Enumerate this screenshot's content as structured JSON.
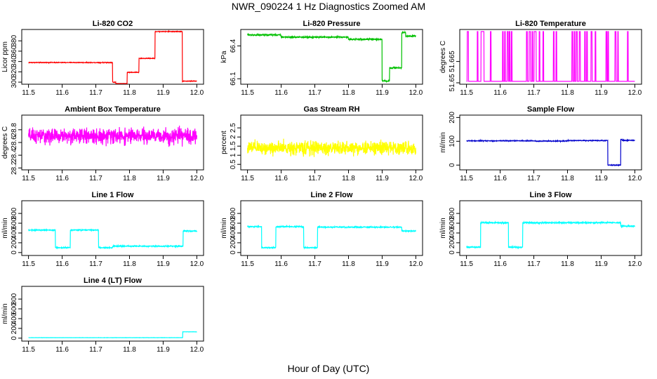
{
  "figure": {
    "title": "NWR_090224  1 Hz Diagnostics Zoomed AM",
    "xlabel": "Hour of Day (UTC)"
  },
  "chart_data": [
    {
      "type": "line",
      "title": "Li-820 CO2",
      "ylabel": "Licor ppm",
      "color": "#ff0000",
      "xlim": [
        11.48,
        12.02
      ],
      "ylim": [
        296,
        402
      ],
      "xticks": [
        11.5,
        11.6,
        11.7,
        11.8,
        11.9,
        12.0
      ],
      "yticks": [
        300,
        320,
        340,
        360,
        380
      ],
      "noise": 0.6,
      "segments": [
        [
          11.5,
          11.75,
          338
        ],
        [
          11.75,
          11.759,
          300
        ],
        [
          11.759,
          11.793,
          297
        ],
        [
          11.793,
          11.828,
          319
        ],
        [
          11.828,
          11.876,
          346
        ],
        [
          11.876,
          11.957,
          398
        ],
        [
          11.957,
          12.0,
          302
        ]
      ]
    },
    {
      "type": "line",
      "title": "Li-820 Pressure",
      "ylabel": "kPa",
      "color": "#00c000",
      "xlim": [
        11.48,
        12.02
      ],
      "ylim": [
        66.05,
        66.55
      ],
      "xticks": [
        11.5,
        11.6,
        11.7,
        11.8,
        11.9,
        12.0
      ],
      "yticks": [
        66.1,
        66.4
      ],
      "noise": 0.006,
      "segments": [
        [
          11.5,
          11.6,
          66.5
        ],
        [
          11.6,
          11.8,
          66.48
        ],
        [
          11.8,
          11.9,
          66.46
        ],
        [
          11.9,
          11.922,
          66.08
        ],
        [
          11.922,
          11.958,
          66.2
        ],
        [
          11.958,
          11.97,
          66.52
        ],
        [
          11.97,
          12.0,
          66.49
        ]
      ]
    },
    {
      "type": "line",
      "title": "Li-820 Temperature",
      "ylabel": "degrees C",
      "color": "#ff00ff",
      "xlim": [
        11.48,
        12.02
      ],
      "ylim": [
        51.649,
        51.6875
      ],
      "xticks": [
        11.5,
        11.6,
        11.7,
        11.8,
        11.9,
        12.0
      ],
      "yticks": [
        51.65,
        51.665
      ],
      "noise": 0,
      "baseline": 51.651,
      "spike_value": 51.686,
      "spikes": [
        [
          11.502,
          11.506
        ],
        [
          11.532,
          11.534
        ],
        [
          11.543,
          11.552
        ],
        [
          11.571,
          11.573
        ],
        [
          11.607,
          11.609
        ],
        [
          11.613,
          11.615
        ],
        [
          11.621,
          11.624
        ],
        [
          11.627,
          11.629
        ],
        [
          11.633,
          11.635
        ],
        [
          11.678,
          11.681
        ],
        [
          11.686,
          11.69
        ],
        [
          11.695,
          11.697
        ],
        [
          11.701,
          11.707
        ],
        [
          11.716,
          11.718
        ],
        [
          11.727,
          11.729
        ],
        [
          11.758,
          11.76
        ],
        [
          11.766,
          11.768
        ],
        [
          11.813,
          11.816
        ],
        [
          11.82,
          11.822
        ],
        [
          11.826,
          11.829
        ],
        [
          11.835,
          11.838
        ],
        [
          11.851,
          11.853
        ],
        [
          11.857,
          11.859
        ],
        [
          11.87,
          11.873
        ],
        [
          11.882,
          11.884
        ],
        [
          11.914,
          11.917
        ],
        [
          11.92,
          11.922
        ],
        [
          11.941,
          11.944
        ],
        [
          11.949,
          11.951
        ],
        [
          11.978,
          11.98
        ]
      ]
    },
    {
      "type": "line",
      "title": "Ambient Box Temperature",
      "ylabel": "degrees C",
      "color": "#ff00ff",
      "xlim": [
        11.48,
        12.02
      ],
      "ylim": [
        28.17,
        29.03
      ],
      "xticks": [
        11.5,
        11.6,
        11.7,
        11.8,
        11.9,
        12.0
      ],
      "yticks": [
        28.2,
        28.4,
        28.6,
        28.8
      ],
      "noise": 0.11,
      "segments": [
        [
          11.5,
          12.0,
          28.7
        ]
      ]
    },
    {
      "type": "line",
      "title": "Gas Stream RH",
      "ylabel": "percent",
      "color": "#ffff00",
      "xlim": [
        11.48,
        12.02
      ],
      "ylim": [
        0.2,
        3.2
      ],
      "xticks": [
        11.5,
        11.6,
        11.7,
        11.8,
        11.9,
        12.0
      ],
      "yticks": [
        0.5,
        1.0,
        1.5,
        2.0,
        2.5
      ],
      "noise": 0.35,
      "segments": [
        [
          11.5,
          12.0,
          1.4
        ]
      ]
    },
    {
      "type": "line",
      "title": "Sample Flow",
      "ylabel": "ml/min",
      "color": "#0000cc",
      "xlim": [
        11.48,
        12.02
      ],
      "ylim": [
        -20,
        210
      ],
      "xticks": [
        11.5,
        11.6,
        11.7,
        11.8,
        11.9,
        12.0
      ],
      "yticks": [
        0,
        100,
        200
      ],
      "noise": 1.5,
      "segments": [
        [
          11.5,
          11.7,
          102
        ],
        [
          11.7,
          11.8,
          101
        ],
        [
          11.8,
          11.92,
          103
        ],
        [
          11.92,
          11.958,
          0
        ],
        [
          11.958,
          11.962,
          108
        ],
        [
          11.962,
          12.0,
          104
        ]
      ]
    },
    {
      "type": "line",
      "title": "Line 1 Flow",
      "ylabel": "ml/min",
      "color": "#00ffff",
      "xlim": [
        11.48,
        12.02
      ],
      "ylim": [
        -60,
        1060
      ],
      "xticks": [
        11.5,
        11.6,
        11.7,
        11.8,
        11.9,
        12.0
      ],
      "yticks": [
        0,
        200,
        400,
        600,
        800
      ],
      "noise": 10,
      "segments": [
        [
          11.5,
          11.58,
          460
        ],
        [
          11.58,
          11.624,
          100
        ],
        [
          11.624,
          11.708,
          460
        ],
        [
          11.708,
          11.75,
          100
        ],
        [
          11.75,
          11.959,
          130
        ],
        [
          11.959,
          12.0,
          440
        ]
      ]
    },
    {
      "type": "line",
      "title": "Line 2 Flow",
      "ylabel": "ml/min",
      "color": "#00ffff",
      "xlim": [
        11.48,
        12.02
      ],
      "ylim": [
        -60,
        1060
      ],
      "xticks": [
        11.5,
        11.6,
        11.7,
        11.8,
        11.9,
        12.0
      ],
      "yticks": [
        0,
        200,
        400,
        600,
        800
      ],
      "noise": 10,
      "segments": [
        [
          11.5,
          11.542,
          530
        ],
        [
          11.542,
          11.584,
          100
        ],
        [
          11.584,
          11.667,
          530
        ],
        [
          11.667,
          11.708,
          100
        ],
        [
          11.708,
          11.958,
          520
        ],
        [
          11.958,
          12.0,
          440
        ]
      ]
    },
    {
      "type": "line",
      "title": "Line 3 Flow",
      "ylabel": "ml/min",
      "color": "#00ffff",
      "xlim": [
        11.48,
        12.02
      ],
      "ylim": [
        -60,
        1060
      ],
      "xticks": [
        11.5,
        11.6,
        11.7,
        11.8,
        11.9,
        12.0
      ],
      "yticks": [
        0,
        200,
        400,
        600,
        800
      ],
      "noise": 12,
      "segments": [
        [
          11.5,
          11.542,
          110
        ],
        [
          11.542,
          11.625,
          610
        ],
        [
          11.625,
          11.667,
          110
        ],
        [
          11.667,
          11.958,
          610
        ],
        [
          11.958,
          12.0,
          540
        ]
      ]
    },
    {
      "type": "line",
      "title": "Line 4 (LT) Flow",
      "ylabel": "ml/min",
      "color": "#00ffff",
      "xlim": [
        11.48,
        12.02
      ],
      "ylim": [
        -60,
        1060
      ],
      "xticks": [
        11.5,
        11.6,
        11.7,
        11.8,
        11.9,
        12.0
      ],
      "yticks": [
        0,
        200,
        400,
        600,
        800
      ],
      "noise": 2,
      "segments": [
        [
          11.5,
          11.958,
          10
        ],
        [
          11.958,
          12.0,
          130
        ]
      ]
    }
  ]
}
